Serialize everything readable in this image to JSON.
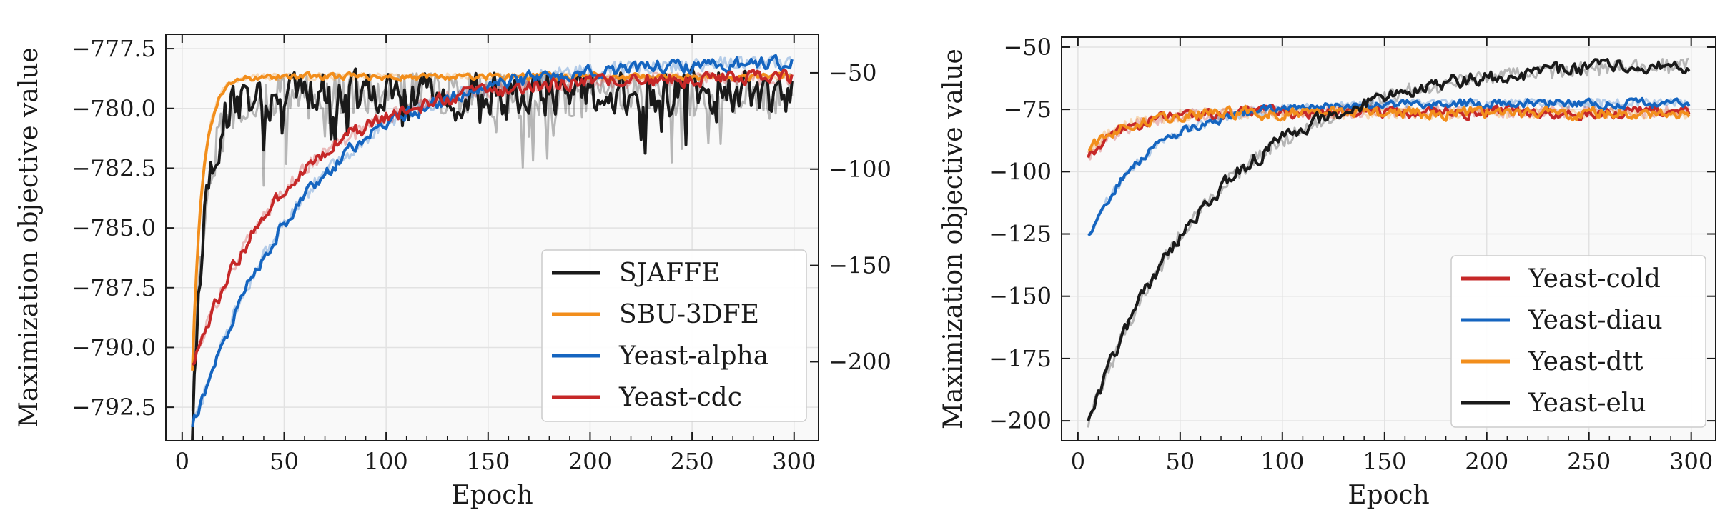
{
  "chart_data": [
    {
      "type": "line",
      "xlabel": "Epoch",
      "ylabel": "Maximization objective value",
      "xlim": [
        -8,
        312
      ],
      "ylim": [
        -793.9,
        -776.9
      ],
      "y2lim": [
        -241,
        -30
      ],
      "xticks": [
        0,
        50,
        100,
        150,
        200,
        250,
        300
      ],
      "yticks": [
        -792.5,
        -790.0,
        -787.5,
        -785.0,
        -782.5,
        -780.0,
        -777.5
      ],
      "ytick_labels": [
        "−792.5",
        "−790.0",
        "−787.5",
        "−785.0",
        "−782.5",
        "−780.0",
        "−777.5"
      ],
      "y2ticks": [
        -50,
        -100,
        -150,
        -200
      ],
      "y2tick_labels": [
        "−50",
        "−100",
        "−150",
        "−200"
      ],
      "legend_position": "lower-right",
      "series": [
        {
          "name": "SJAFFE",
          "color": "#1a1a1a",
          "axis": "y2",
          "start": -230,
          "plateau": -62,
          "rate": 6,
          "noise": 10
        },
        {
          "name": "SBU-3DFE",
          "color": "#f28e1c",
          "axis": "y2",
          "start": -205,
          "plateau": -52,
          "rate": 5,
          "noise": 1.5
        },
        {
          "name": "Yeast-alpha",
          "color": "#1565c0",
          "axis": "y1",
          "start": -793.4,
          "plateau": -778.0,
          "rate": 55,
          "noise": 0.25
        },
        {
          "name": "Yeast-cdc",
          "color": "#c62828",
          "axis": "y1",
          "start": -790.8,
          "plateau": -778.7,
          "rate": 48,
          "noise": 0.25
        }
      ]
    },
    {
      "type": "line",
      "xlabel": "Epoch",
      "ylabel": "Maximization objective value",
      "xlim": [
        -8,
        312
      ],
      "ylim": [
        -208,
        -46
      ],
      "xticks": [
        0,
        50,
        100,
        150,
        200,
        250,
        300
      ],
      "yticks": [
        -200,
        -175,
        -150,
        -125,
        -100,
        -75,
        -50
      ],
      "ytick_labels": [
        "−200",
        "−175",
        "−150",
        "−125",
        "−100",
        "−75",
        "−50"
      ],
      "legend_position": "lower-right",
      "series": [
        {
          "name": "Yeast-cold",
          "color": "#c62828",
          "start": -95,
          "plateau": -76,
          "rate": 18,
          "noise": 2
        },
        {
          "name": "Yeast-diau",
          "color": "#1565c0",
          "start": -126,
          "plateau": -72.5,
          "rate": 30,
          "noise": 1.5
        },
        {
          "name": "Yeast-dtt",
          "color": "#f28e1c",
          "start": -92,
          "plateau": -76.5,
          "rate": 16,
          "noise": 2
        },
        {
          "name": "Yeast-elu",
          "color": "#1a1a1a",
          "start": -201,
          "plateau": -56,
          "rate": 62,
          "noise": 2.5
        }
      ]
    }
  ]
}
